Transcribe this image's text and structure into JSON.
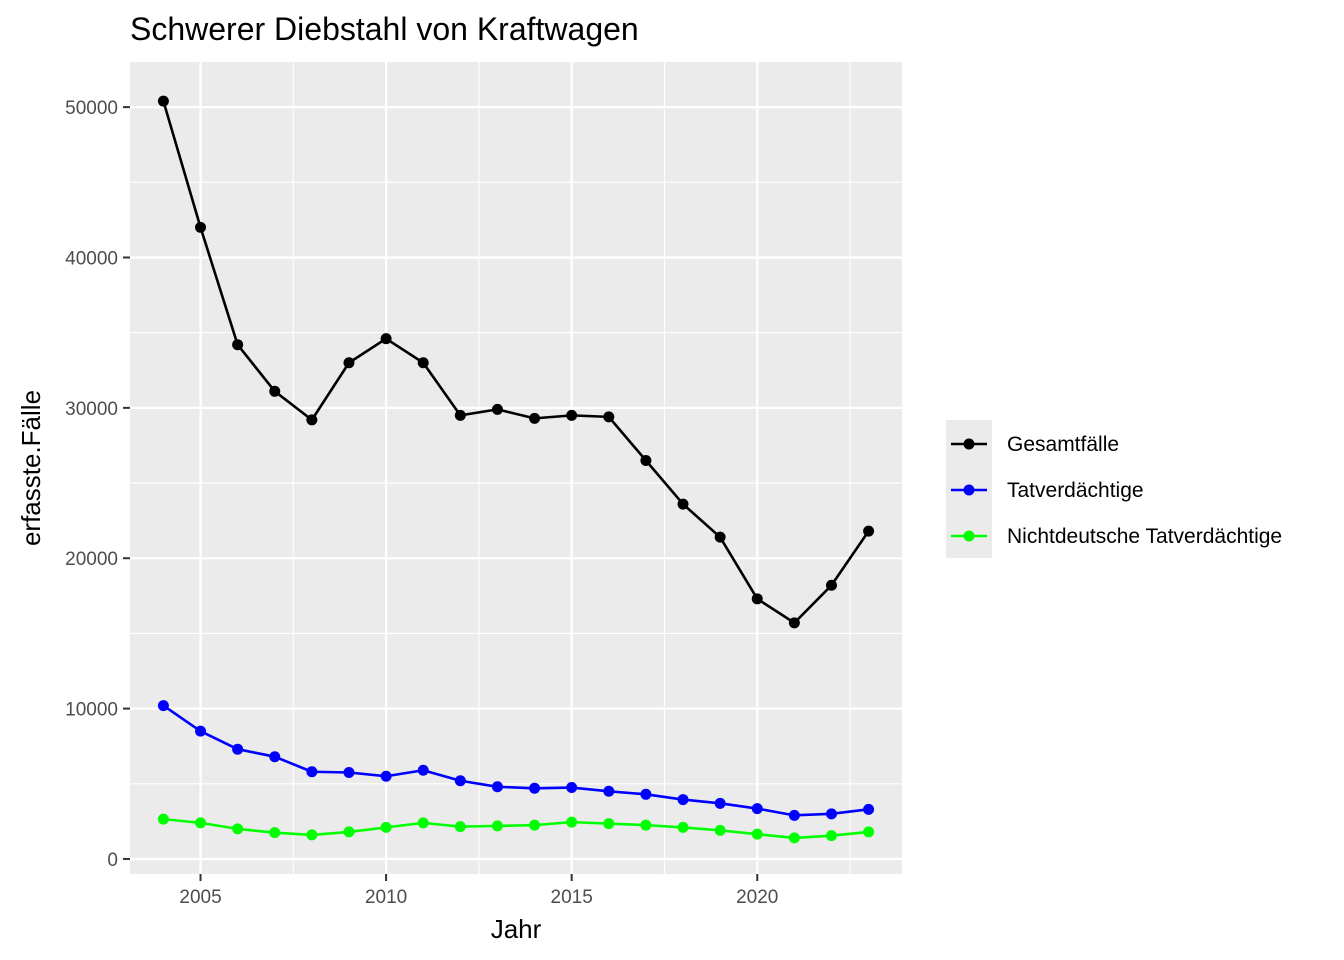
{
  "chart_data": {
    "type": "line",
    "title": "Schwerer Diebstahl von Kraftwagen",
    "xlabel": "Jahr",
    "ylabel": "erfasste.Fälle",
    "xlim": [
      2003.1,
      2023.9
    ],
    "ylim": [
      -1000,
      53000
    ],
    "x_ticks": [
      2005,
      2010,
      2015,
      2020
    ],
    "x_tick_labels": [
      "2005",
      "2010",
      "2015",
      "2020"
    ],
    "y_ticks": [
      0,
      10000,
      20000,
      30000,
      40000,
      50000
    ],
    "y_tick_labels": [
      "0",
      "10000",
      "20000",
      "30000",
      "40000",
      "50000"
    ],
    "grid": true,
    "legend_position": "right",
    "x": [
      2004,
      2005,
      2006,
      2007,
      2008,
      2009,
      2010,
      2011,
      2012,
      2013,
      2014,
      2015,
      2016,
      2017,
      2018,
      2019,
      2020,
      2021,
      2022,
      2023
    ],
    "series": [
      {
        "name": "Gesamtfälle",
        "color": "#000000",
        "values": [
          50400,
          42000,
          34200,
          31100,
          29200,
          33000,
          34600,
          33000,
          29500,
          29900,
          29300,
          29500,
          29400,
          26500,
          23600,
          21400,
          17300,
          15700,
          18200,
          21800
        ]
      },
      {
        "name": "Tatverdächtige",
        "color": "#0000ff",
        "values": [
          10200,
          8500,
          7300,
          6800,
          5800,
          5750,
          5500,
          5900,
          5200,
          4800,
          4700,
          4750,
          4500,
          4300,
          3950,
          3700,
          3350,
          2900,
          3000,
          3300
        ]
      },
      {
        "name": "Nichtdeutsche Tatverdächtige",
        "color": "#00ff00",
        "values": [
          2650,
          2400,
          2000,
          1750,
          1600,
          1800,
          2100,
          2400,
          2150,
          2200,
          2250,
          2450,
          2350,
          2250,
          2100,
          1900,
          1650,
          1400,
          1550,
          1800
        ]
      }
    ]
  }
}
